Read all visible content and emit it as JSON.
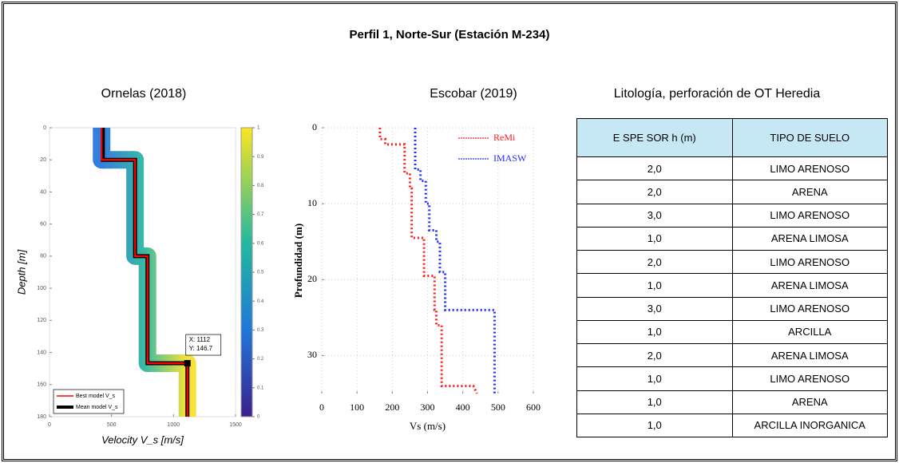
{
  "title": "Perfil 1, Norte-Sur (Estación M-234)",
  "chart_data": [
    {
      "type": "line",
      "title": "Ornelas (2018)",
      "x_label": "Velocity V_s [m/s]",
      "y_label": "Depth [m]",
      "xlim": [
        0,
        1500
      ],
      "xticks": [
        0,
        500,
        1000,
        1500
      ],
      "ylim": [
        0,
        180
      ],
      "yticks": [
        0,
        20,
        40,
        60,
        80,
        100,
        120,
        140,
        160,
        180
      ],
      "y_inverted": true,
      "series": [
        {
          "name": "Mean model V_s",
          "color": "#000000",
          "x": [
            430,
            430,
            690,
            690,
            790,
            790,
            1112,
            1112
          ],
          "y": [
            0,
            20,
            20,
            80,
            80,
            146.7,
            146.7,
            180
          ]
        },
        {
          "name": "Best model V_s",
          "color": "#ff0000",
          "x": [
            420,
            420,
            690,
            690,
            790,
            790,
            1112,
            1112
          ],
          "y": [
            0,
            20,
            20,
            80,
            80,
            146.7,
            146.7,
            180
          ]
        }
      ],
      "colorbar_ticks": [
        0,
        0.1,
        0.2,
        0.3,
        0.4,
        0.5,
        0.6,
        0.7,
        0.8,
        0.9,
        1
      ],
      "annotation": {
        "x": 1112,
        "y": 146.7,
        "label_x": "X: 1112",
        "label_y": "Y: 146.7"
      }
    },
    {
      "type": "line",
      "title": "Escobar (2019)",
      "x_label": "Vs (m/s)",
      "y_label": "Profundidad (m)",
      "xlim": [
        0,
        600
      ],
      "xticks": [
        0,
        100,
        200,
        300,
        400,
        500,
        600
      ],
      "ylim": [
        0,
        35
      ],
      "yticks": [
        0,
        10,
        20,
        30
      ],
      "y_inverted": true,
      "grid": true,
      "legend": "upper right",
      "series": [
        {
          "name": "ReMi",
          "color": "#ff2020",
          "x": [
            165,
            165,
            180,
            180,
            235,
            235,
            250,
            250,
            255,
            255,
            290,
            290,
            320,
            320,
            325,
            325,
            340,
            340,
            430,
            440
          ],
          "y": [
            0,
            1.5,
            1.5,
            2.2,
            2.2,
            6,
            6,
            8,
            8,
            14.5,
            14.5,
            19.5,
            19.5,
            24,
            24,
            26,
            26,
            34,
            34,
            35
          ]
        },
        {
          "name": "IMASW",
          "color": "#2030ff",
          "x": [
            265,
            265,
            280,
            280,
            295,
            295,
            305,
            305,
            325,
            325,
            335,
            335,
            350,
            350,
            490,
            490
          ],
          "y": [
            0,
            5.5,
            5.5,
            7,
            7,
            10,
            10,
            13.5,
            13.5,
            15,
            15,
            19,
            19,
            24,
            24,
            35
          ]
        }
      ]
    }
  ],
  "table": {
    "title": "Litología, perforación de OT Heredia",
    "header": [
      "E SPE SOR h (m)",
      "TIPO DE SUELO"
    ],
    "rows": [
      [
        "2,0",
        "LIMO ARENOSO"
      ],
      [
        "2,0",
        "ARENA"
      ],
      [
        "3,0",
        "LIMO ARENOSO"
      ],
      [
        "1,0",
        "ARENA LIMOSA"
      ],
      [
        "2,0",
        "LIMO ARENOSO"
      ],
      [
        "1,0",
        "ARENA LIMOSA"
      ],
      [
        "3,0",
        "LIMO ARENOSO"
      ],
      [
        "1,0",
        "ARCILLA"
      ],
      [
        "2,0",
        "ARENA LIMOSA"
      ],
      [
        "1,0",
        "LIMO ARENOSO"
      ],
      [
        "1,0",
        "ARENA"
      ],
      [
        "1,0",
        "ARCILLA INORGANICA"
      ]
    ]
  }
}
